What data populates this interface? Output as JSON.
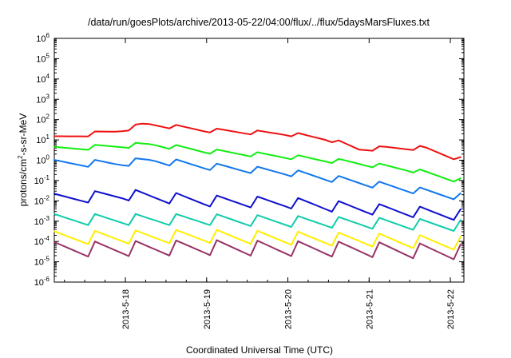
{
  "chart_data": {
    "type": "line",
    "title": "/data/run/goesPlots/archive/2013-05-22/04:00/flux/../flux/5daysMarsFluxes.txt",
    "xlabel": "Coordinated Universal Time (UTC)",
    "ylabel": "protons/cm2-s-sr-MeV",
    "ylabel_parts": {
      "before": "protons/cm",
      "sup": "2",
      "after": "-s-sr-MeV"
    },
    "yscale": "log",
    "ylim": [
      1e-06,
      1000000.0
    ],
    "y_ticks": [
      {
        "exp": -6,
        "label": "10",
        "sup": "-6"
      },
      {
        "exp": -5,
        "label": "10",
        "sup": "-5"
      },
      {
        "exp": -4,
        "label": "10",
        "sup": "-4"
      },
      {
        "exp": -3,
        "label": "10",
        "sup": "-3"
      },
      {
        "exp": -2,
        "label": "10",
        "sup": "-2"
      },
      {
        "exp": -1,
        "label": "10",
        "sup": "-1"
      },
      {
        "exp": 0,
        "label": "10",
        "sup": "0"
      },
      {
        "exp": 1,
        "label": "10",
        "sup": "1"
      },
      {
        "exp": 2,
        "label": "10",
        "sup": "2"
      },
      {
        "exp": 3,
        "label": "10",
        "sup": "3"
      },
      {
        "exp": 4,
        "label": "10",
        "sup": "4"
      },
      {
        "exp": 5,
        "label": "10",
        "sup": "5"
      },
      {
        "exp": 6,
        "label": "10",
        "sup": "6"
      }
    ],
    "xlim": [
      "2013-05-17T03:00",
      "2013-05-22T04:00"
    ],
    "x_ticks": [
      "2013-5-18",
      "2013-5-19",
      "2013-5-20",
      "2013-5-21",
      "2013-5-22"
    ],
    "x_tick_dates": [
      "2013-05-18T00:00",
      "2013-05-19T00:00",
      "2013-05-20T00:00",
      "2013-05-21T00:00",
      "2013-05-22T00:00"
    ],
    "grid": false,
    "sample_interval_hours": 2,
    "series": [
      {
        "color": "#ee1111",
        "anchors": [
          {
            "t": "2013-05-17T03:00",
            "v": 12
          },
          {
            "t": "2013-05-17T12:00",
            "v": 18
          },
          {
            "t": "2013-05-17T22:00",
            "v": 28
          },
          {
            "t": "2013-05-18T06:00",
            "v": 60
          },
          {
            "t": "2013-05-18T14:00",
            "v": 45
          },
          {
            "t": "2013-05-19T00:00",
            "v": 30
          },
          {
            "t": "2013-05-19T12:00",
            "v": 24
          },
          {
            "t": "2013-05-20T00:00",
            "v": 20
          },
          {
            "t": "2013-05-20T12:00",
            "v": 11
          },
          {
            "t": "2013-05-20T21:00",
            "v": 3.5
          },
          {
            "t": "2013-05-21T06:00",
            "v": 4
          },
          {
            "t": "2013-05-21T16:00",
            "v": 4
          },
          {
            "t": "2013-05-22T04:00",
            "v": 1.0
          }
        ],
        "zigzag": 1.6
      },
      {
        "color": "#11ee11",
        "anchors": [
          {
            "t": "2013-05-17T03:00",
            "v": 3.5
          },
          {
            "t": "2013-05-17T22:00",
            "v": 5
          },
          {
            "t": "2013-05-18T08:00",
            "v": 6
          },
          {
            "t": "2013-05-19T00:00",
            "v": 2.8
          },
          {
            "t": "2013-05-20T00:00",
            "v": 1.5
          },
          {
            "t": "2013-05-20T18:00",
            "v": 0.8
          },
          {
            "t": "2013-05-21T12:00",
            "v": 0.35
          },
          {
            "t": "2013-05-22T04:00",
            "v": 0.09
          }
        ],
        "zigzag": 1.7
      },
      {
        "color": "#1177ee",
        "anchors": [
          {
            "t": "2013-05-17T03:00",
            "v": 0.7
          },
          {
            "t": "2013-05-17T22:00",
            "v": 0.7
          },
          {
            "t": "2013-05-18T08:00",
            "v": 1.0
          },
          {
            "t": "2013-05-19T00:00",
            "v": 0.5
          },
          {
            "t": "2013-05-20T00:00",
            "v": 0.25
          },
          {
            "t": "2013-05-21T00:00",
            "v": 0.07
          },
          {
            "t": "2013-05-22T04:00",
            "v": 0.015
          }
        ],
        "zigzag": 2.2
      },
      {
        "color": "#0f10cc",
        "anchors": [
          {
            "t": "2013-05-17T03:00",
            "v": 0.012
          },
          {
            "t": "2013-05-18T00:00",
            "v": 0.02
          },
          {
            "t": "2013-05-19T00:00",
            "v": 0.01
          },
          {
            "t": "2013-05-20T00:00",
            "v": 0.008
          },
          {
            "t": "2013-05-21T00:00",
            "v": 0.004
          },
          {
            "t": "2013-05-22T04:00",
            "v": 0.002
          }
        ],
        "zigzag": 3.5
      },
      {
        "color": "#11ccaa",
        "anchors": [
          {
            "t": "2013-05-17T03:00",
            "v": 0.0012
          },
          {
            "t": "2013-05-19T00:00",
            "v": 0.0012
          },
          {
            "t": "2013-05-21T00:00",
            "v": 0.0008
          },
          {
            "t": "2013-05-22T04:00",
            "v": 0.0006
          }
        ],
        "zigzag": 3.5
      },
      {
        "color": "#ffee00",
        "anchors": [
          {
            "t": "2013-05-17T03:00",
            "v": 0.00015
          },
          {
            "t": "2013-05-19T00:00",
            "v": 0.00018
          },
          {
            "t": "2013-05-21T00:00",
            "v": 0.00012
          },
          {
            "t": "2013-05-22T04:00",
            "v": 8e-05
          }
        ],
        "zigzag": 4.5
      },
      {
        "color": "#993366",
        "anchors": [
          {
            "t": "2013-05-17T03:00",
            "v": 4e-05
          },
          {
            "t": "2013-05-19T00:00",
            "v": 5e-05
          },
          {
            "t": "2013-05-21T00:00",
            "v": 4e-05
          },
          {
            "t": "2013-05-22T04:00",
            "v": 3e-05
          }
        ],
        "zigzag": 5.5
      }
    ]
  }
}
